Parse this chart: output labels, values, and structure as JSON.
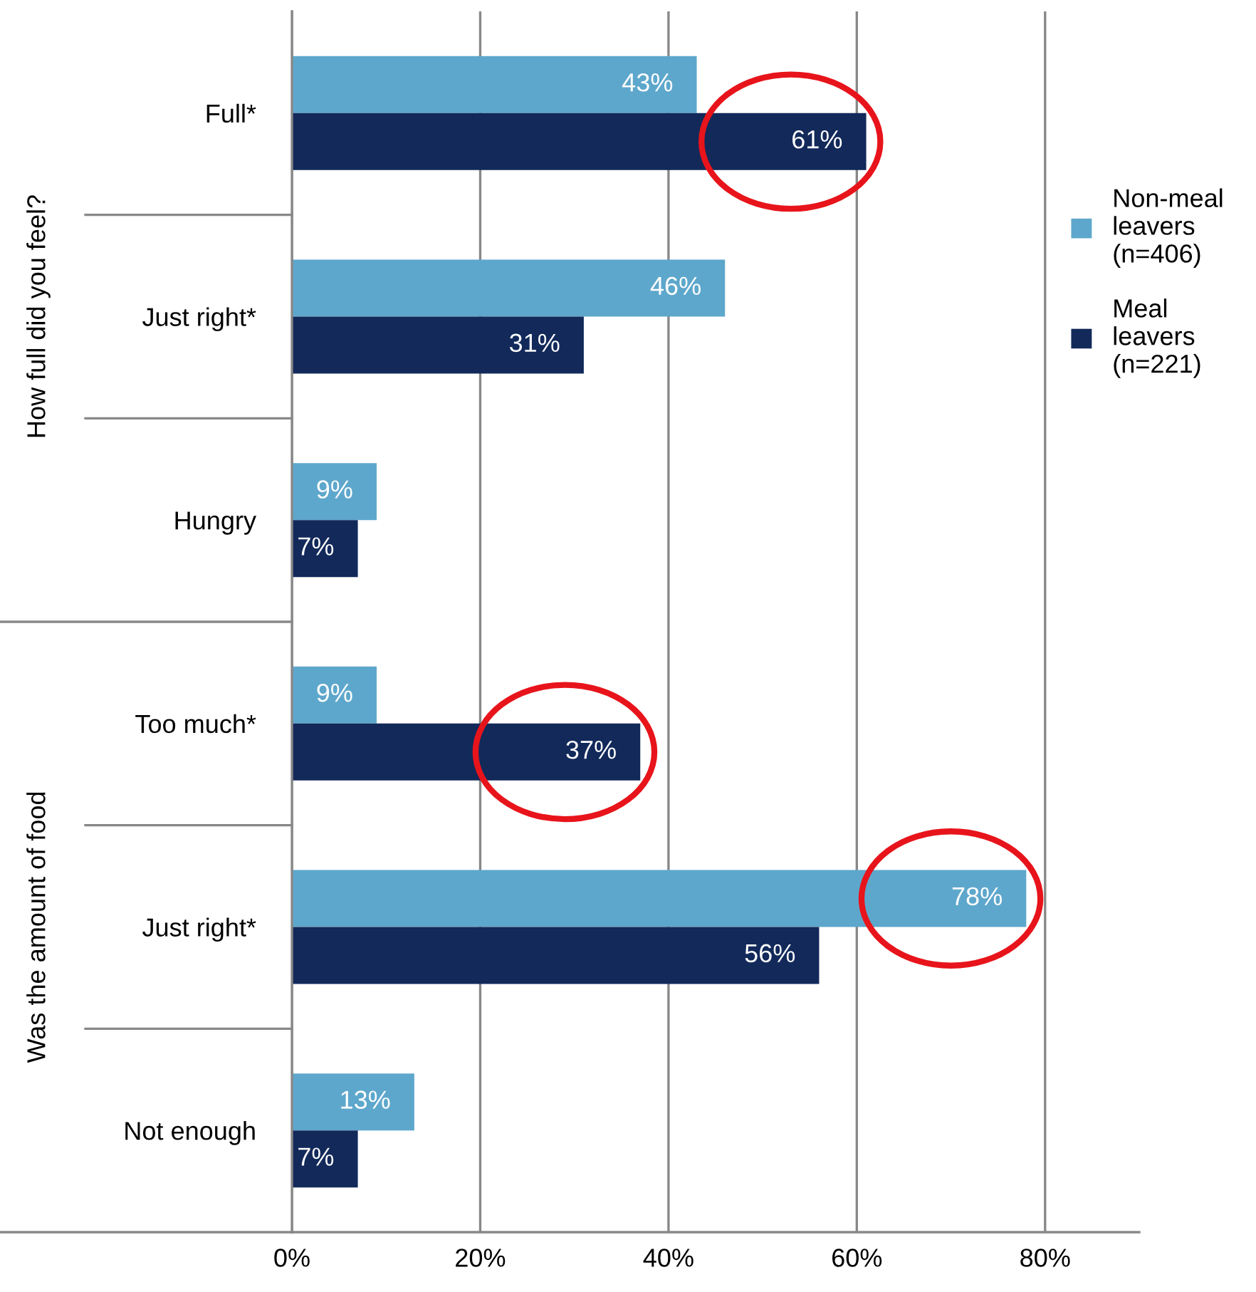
{
  "chart_data": {
    "type": "bar",
    "orientation": "horizontal",
    "categories": [
      "Full*",
      "Just right*",
      "Hungry",
      "Too much*",
      "Just right*",
      "Not enough"
    ],
    "series": [
      {
        "name": "Non-meal leavers (n=406)",
        "color": "#5ea7cc",
        "values": [
          43,
          46,
          9,
          9,
          78,
          13
        ],
        "value_labels": [
          "43%",
          "46%",
          "9%",
          "9%",
          "78%",
          "13%"
        ]
      },
      {
        "name": "Meal leavers (n=221)",
        "color": "#12295a",
        "values": [
          61,
          31,
          7,
          37,
          56,
          7
        ],
        "value_labels": [
          "61%",
          "31%",
          "7%",
          "37%",
          "56%",
          "7%"
        ]
      }
    ],
    "xlim": [
      0,
      90
    ],
    "xticks": [
      {
        "value": 0,
        "label": "0%"
      },
      {
        "value": 20,
        "label": "20%"
      },
      {
        "value": 40,
        "label": "40%"
      },
      {
        "value": 60,
        "label": "60%"
      },
      {
        "value": 80,
        "label": "80%"
      }
    ],
    "grid": "x",
    "legend": "right",
    "annotations": [
      "How full did you feel?",
      "Was the amount of food"
    ]
  }
}
